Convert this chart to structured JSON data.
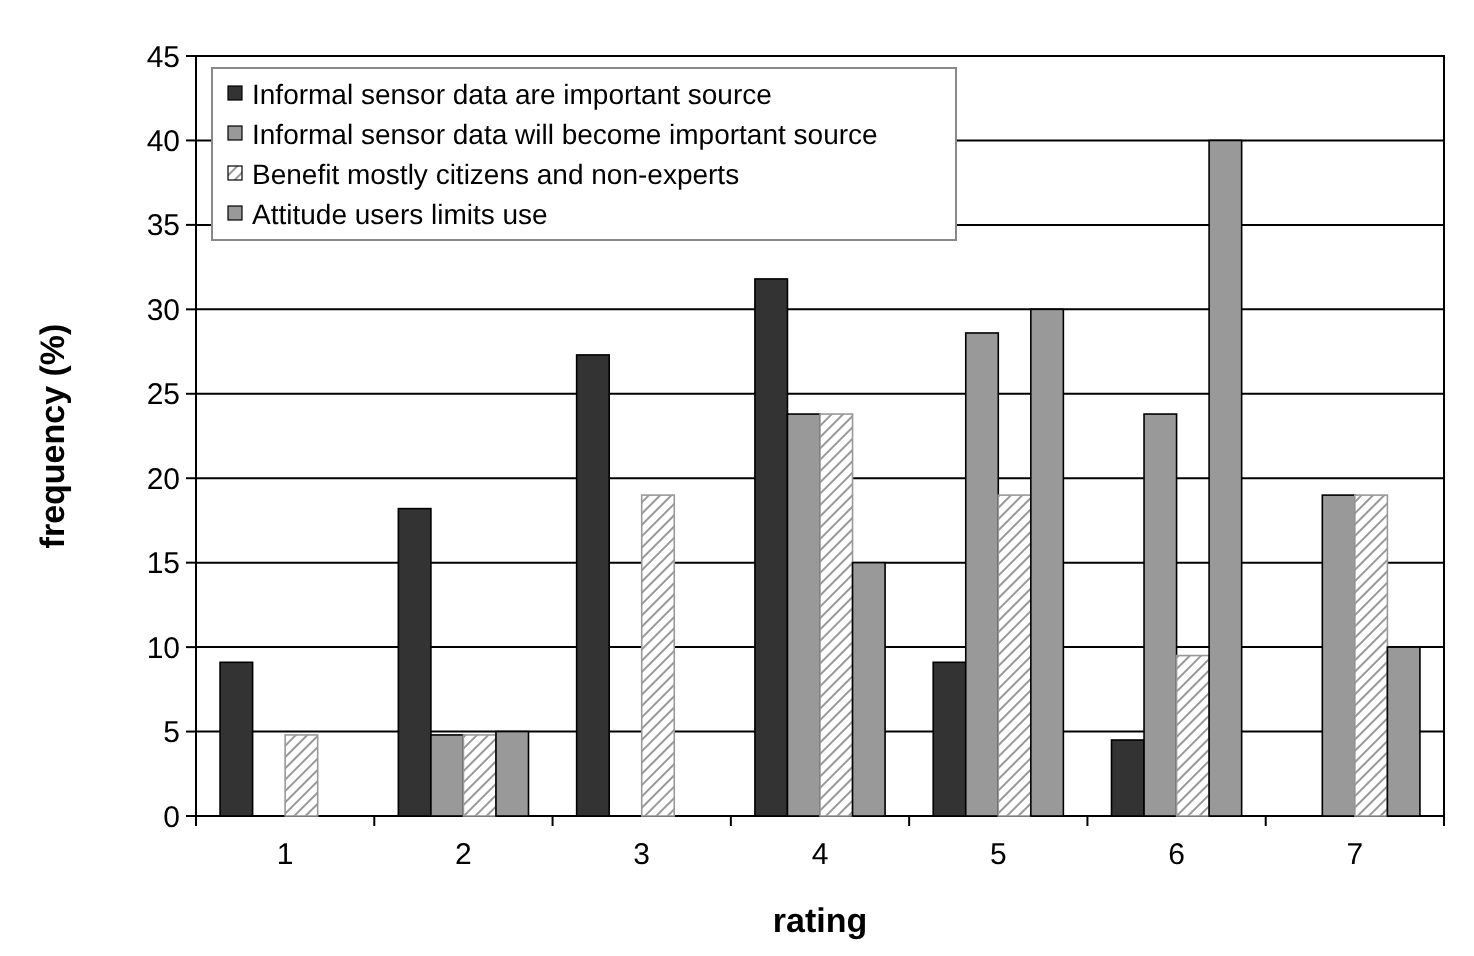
{
  "chart_data": {
    "type": "bar",
    "xlabel": "rating",
    "ylabel": "frequency (%)",
    "categories": [
      "1",
      "2",
      "3",
      "4",
      "5",
      "6",
      "7"
    ],
    "series": [
      {
        "name": "Informal sensor data are important source",
        "color": "#333333",
        "values": [
          9.1,
          18.2,
          27.3,
          31.8,
          9.1,
          4.5,
          0
        ]
      },
      {
        "name": "Informal sensor data will become important source",
        "color": "#999999",
        "values": [
          0,
          4.8,
          0,
          23.8,
          28.6,
          23.8,
          19.0
        ]
      },
      {
        "name": "Benefit mostly citizens and non-experts",
        "color": "#999999",
        "values": [
          4.8,
          4.8,
          19.0,
          23.8,
          19.0,
          9.5,
          19.0
        ]
      },
      {
        "name": "Attitude users limits use",
        "color": "#999999",
        "values": [
          0,
          5,
          0,
          15,
          30,
          40,
          10
        ]
      }
    ],
    "ylim": [
      0,
      45
    ],
    "yticks": [
      0,
      5,
      10,
      15,
      20,
      25,
      30,
      35,
      40,
      45
    ],
    "grid": "y",
    "legend": "top left"
  }
}
